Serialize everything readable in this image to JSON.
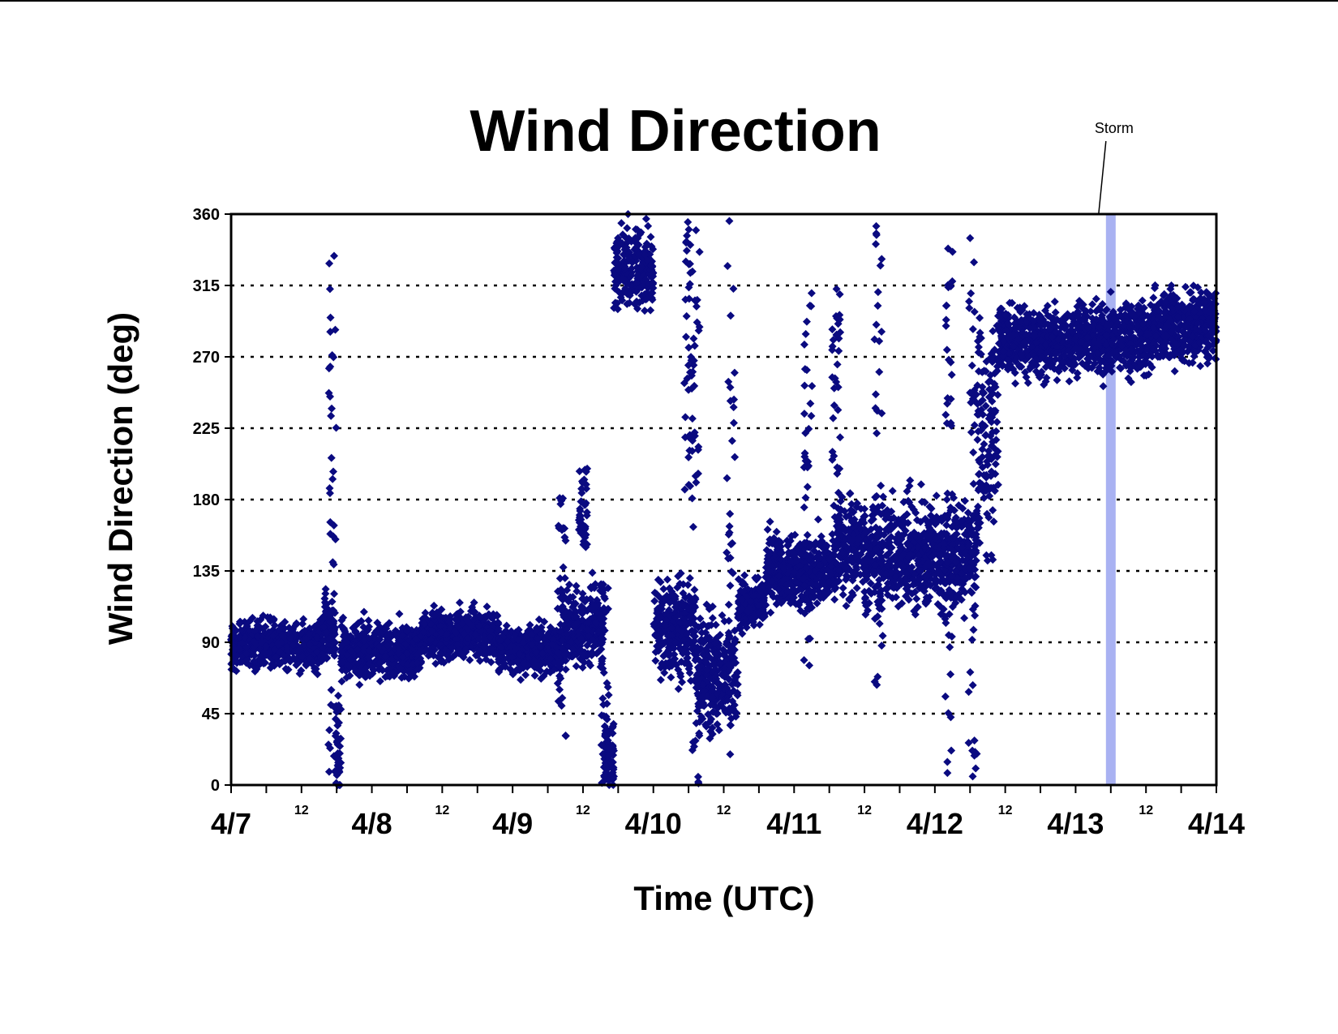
{
  "chart_data": {
    "type": "scatter",
    "title": "Wind Direction",
    "xlabel": "Time (UTC)",
    "ylabel": "Wind Direction (deg)",
    "ylim": [
      0,
      360
    ],
    "yticks": [
      "0",
      "45",
      "90",
      "135",
      "180",
      "225",
      "270",
      "315",
      "360"
    ],
    "xlim": [
      "4/7 00:00",
      "4/14 00:00"
    ],
    "xticks_major": [
      "4/7",
      "4/8",
      "4/9",
      "4/10",
      "4/11",
      "4/12",
      "4/13",
      "4/14"
    ],
    "xticks_minor_label": "12",
    "grid": "horizontal dotted",
    "legend": "none",
    "marker": "diamond",
    "series_color": "#0a0a80",
    "annotation": {
      "text": "Storm",
      "time": "4/13 06:00",
      "band_color": "#a9b2f2"
    },
    "x_unit": "day",
    "regimes": [
      {
        "start": 0.0,
        "end": 0.65,
        "mean": 88,
        "spread": 12
      },
      {
        "start": 0.65,
        "end": 0.74,
        "mean": 100,
        "spread": 18
      },
      {
        "start": 0.74,
        "end": 0.78,
        "mean": 20,
        "spread": 25
      },
      {
        "start": 0.78,
        "end": 1.35,
        "mean": 85,
        "spread": 14
      },
      {
        "start": 1.35,
        "end": 1.9,
        "mean": 95,
        "spread": 12
      },
      {
        "start": 1.9,
        "end": 2.35,
        "mean": 85,
        "spread": 12
      },
      {
        "start": 2.35,
        "end": 2.65,
        "mean": 100,
        "spread": 20
      },
      {
        "start": 2.65,
        "end": 2.72,
        "mean": 20,
        "spread": 25
      },
      {
        "start": 2.72,
        "end": 3.0,
        "mean": 325,
        "spread": 20
      },
      {
        "start": 3.0,
        "end": 3.3,
        "mean": 100,
        "spread": 25
      },
      {
        "start": 3.3,
        "end": 3.6,
        "mean": 70,
        "spread": 30
      },
      {
        "start": 3.6,
        "end": 3.8,
        "mean": 115,
        "spread": 12
      },
      {
        "start": 3.8,
        "end": 4.3,
        "mean": 135,
        "spread": 18
      },
      {
        "start": 4.3,
        "end": 4.5,
        "mean": 150,
        "spread": 25
      },
      {
        "start": 4.5,
        "end": 5.3,
        "mean": 145,
        "spread": 28
      },
      {
        "start": 5.3,
        "end": 5.45,
        "mean": 220,
        "spread": 60
      },
      {
        "start": 5.45,
        "end": 6.0,
        "mean": 280,
        "spread": 18
      },
      {
        "start": 6.0,
        "end": 6.55,
        "mean": 282,
        "spread": 18
      },
      {
        "start": 6.55,
        "end": 7.0,
        "mean": 290,
        "spread": 20
      }
    ],
    "vertical_streaks": [
      {
        "x": 0.72,
        "from": 0,
        "to": 360
      },
      {
        "x": 2.35,
        "from": 30,
        "to": 190
      },
      {
        "x": 2.5,
        "from": 150,
        "to": 200
      },
      {
        "x": 2.65,
        "from": 0,
        "to": 130
      },
      {
        "x": 3.25,
        "from": 180,
        "to": 360
      },
      {
        "x": 3.3,
        "from": 0,
        "to": 360
      },
      {
        "x": 3.55,
        "from": 0,
        "to": 360
      },
      {
        "x": 4.1,
        "from": 60,
        "to": 320
      },
      {
        "x": 4.3,
        "from": 150,
        "to": 320
      },
      {
        "x": 4.6,
        "from": 60,
        "to": 360
      },
      {
        "x": 5.1,
        "from": 0,
        "to": 360
      },
      {
        "x": 5.27,
        "from": 0,
        "to": 360
      }
    ]
  }
}
